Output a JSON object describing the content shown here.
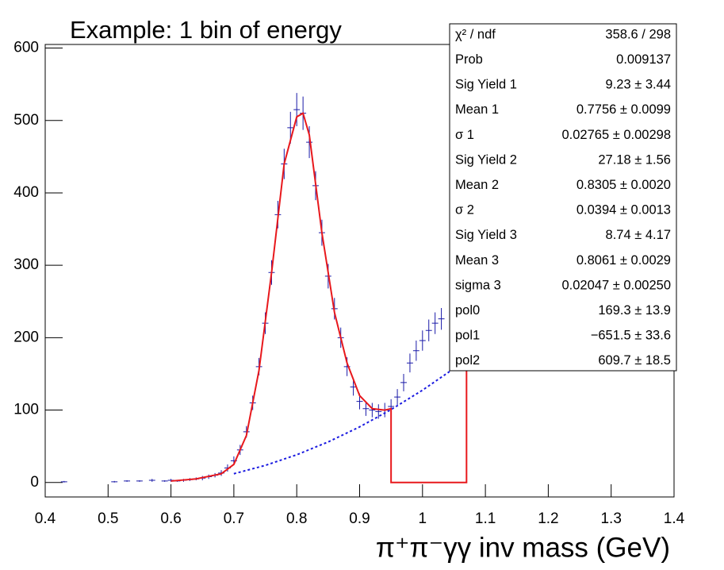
{
  "chart_data": {
    "type": "histogram-fit",
    "title": "Example: 1 bin of energy",
    "x_label": "π⁺π⁻γγ inv mass (GeV)",
    "xlim": [
      0.4,
      1.4
    ],
    "xticks": [
      0.4,
      0.5,
      0.6,
      0.7,
      0.8,
      0.9,
      1,
      1.1,
      1.2,
      1.3,
      1.4
    ],
    "ylim": [
      -20,
      605
    ],
    "yticks": [
      0,
      100,
      200,
      300,
      400,
      500,
      600
    ],
    "series": [
      {
        "name": "data",
        "color": "#1a1aa8",
        "x": [
          0.43,
          0.51,
          0.53,
          0.55,
          0.57,
          0.59,
          0.6,
          0.61,
          0.62,
          0.63,
          0.64,
          0.65,
          0.66,
          0.67,
          0.68,
          0.69,
          0.7,
          0.71,
          0.72,
          0.73,
          0.74,
          0.75,
          0.76,
          0.77,
          0.78,
          0.79,
          0.8,
          0.81,
          0.82,
          0.83,
          0.84,
          0.85,
          0.86,
          0.87,
          0.88,
          0.89,
          0.9,
          0.91,
          0.92,
          0.93,
          0.94,
          0.95,
          0.96,
          0.97,
          0.98,
          0.99,
          1.0,
          1.01,
          1.02,
          1.03
        ],
        "values": [
          1,
          1,
          2,
          2,
          3,
          2,
          3,
          2,
          3,
          4,
          5,
          6,
          8,
          10,
          13,
          20,
          30,
          45,
          70,
          110,
          160,
          220,
          290,
          370,
          440,
          490,
          515,
          510,
          470,
          410,
          345,
          285,
          240,
          200,
          160,
          132,
          112,
          102,
          100,
          98,
          100,
          105,
          118,
          138,
          165,
          182,
          196,
          210,
          220,
          226
        ],
        "errors": [
          1,
          1,
          1,
          1,
          2,
          1,
          2,
          1,
          2,
          2,
          2,
          3,
          3,
          3,
          4,
          5,
          6,
          7,
          8,
          10,
          12,
          15,
          17,
          19,
          21,
          22,
          23,
          23,
          22,
          20,
          18,
          17,
          15,
          14,
          13,
          12,
          11,
          10,
          10,
          10,
          10,
          10,
          11,
          12,
          13,
          14,
          14,
          15,
          15,
          15
        ]
      },
      {
        "name": "fit",
        "color": "#e8181c",
        "x": [
          0.6,
          0.64,
          0.68,
          0.7,
          0.72,
          0.74,
          0.76,
          0.78,
          0.8,
          0.81,
          0.82,
          0.84,
          0.86,
          0.88,
          0.9,
          0.92,
          0.94,
          0.95,
          0.95,
          1.07,
          1.07
        ],
        "values": [
          2,
          5,
          12,
          25,
          65,
          155,
          290,
          440,
          505,
          510,
          480,
          345,
          235,
          165,
          120,
          102,
          100,
          102,
          0,
          0,
          185
        ]
      },
      {
        "name": "background",
        "color": "#1a1ae0",
        "dashed": true,
        "x": [
          0.7,
          0.75,
          0.8,
          0.85,
          0.9,
          0.95,
          1.0,
          1.05,
          1.1,
          1.15,
          1.2,
          1.25,
          1.3,
          1.35
        ],
        "values": [
          12.1,
          23.6,
          38.3,
          56.0,
          76.8,
          100.7,
          127.5,
          157.4,
          190.4,
          226.4,
          265.5,
          307.6,
          352.8,
          401.0
        ]
      }
    ],
    "stats": [
      [
        "χ² / ndf",
        "358.6 / 298"
      ],
      [
        "Prob",
        "0.009137"
      ],
      [
        "Sig Yield 1",
        "9.23 ± 3.44"
      ],
      [
        "Mean 1",
        "0.7756 ± 0.0099"
      ],
      [
        "σ 1",
        "0.02765 ± 0.00298"
      ],
      [
        "Sig Yield 2",
        "27.18 ± 1.56"
      ],
      [
        "Mean 2",
        "0.8305 ± 0.0020"
      ],
      [
        "σ 2",
        "0.0394 ± 0.0013"
      ],
      [
        "Sig Yield 3",
        "8.74 ± 4.17"
      ],
      [
        "Mean 3",
        "0.8061 ± 0.0029"
      ],
      [
        "sigma 3",
        "0.02047 ± 0.00250"
      ],
      [
        "pol0",
        "169.3 ± 13.9"
      ],
      [
        "pol1",
        "−651.5 ± 33.6"
      ],
      [
        "pol2",
        "609.7 ± 18.5"
      ]
    ]
  }
}
